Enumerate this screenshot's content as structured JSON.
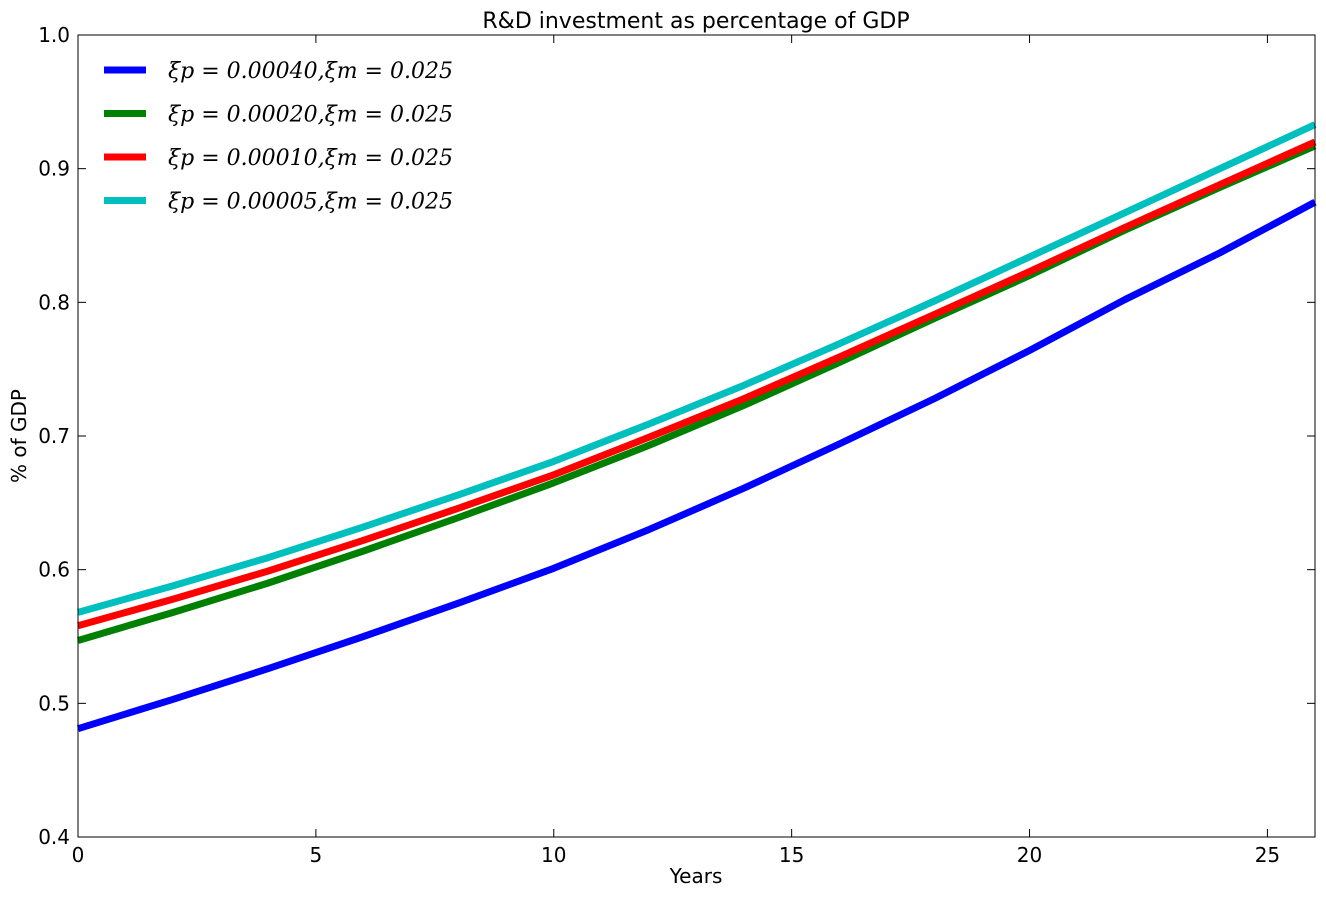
{
  "chart_data": {
    "type": "line",
    "title": "R&D investment as percentage of  GDP",
    "xlabel": "Years",
    "ylabel": "% of GDP",
    "xlim": [
      0,
      26
    ],
    "ylim": [
      0.4,
      1.0
    ],
    "xticks": [
      0,
      5,
      10,
      15,
      20,
      25
    ],
    "yticks": [
      0.4,
      0.5,
      0.6,
      0.7,
      0.8,
      0.9,
      1.0
    ],
    "xtick_labels": [
      "0",
      "5",
      "10",
      "15",
      "20",
      "25"
    ],
    "ytick_labels": [
      "0.4",
      "0.5",
      "0.6",
      "0.7",
      "0.8",
      "0.9",
      "1.0"
    ],
    "grid": false,
    "legend_position": "top-left",
    "series": [
      {
        "name": "ξp = 0.00040,ξm = 0.025",
        "color": "#0000ff",
        "x": [
          0,
          2,
          4,
          6,
          8,
          10,
          12,
          14,
          16,
          18,
          20,
          22,
          24,
          26
        ],
        "y": [
          0.481,
          0.503,
          0.526,
          0.55,
          0.575,
          0.601,
          0.63,
          0.661,
          0.694,
          0.728,
          0.764,
          0.802,
          0.837,
          0.875
        ]
      },
      {
        "name": "ξp = 0.00020,ξm = 0.025",
        "color": "#008000",
        "x": [
          0,
          2,
          4,
          6,
          8,
          10,
          12,
          14,
          16,
          18,
          20,
          22,
          24,
          26
        ],
        "y": [
          0.547,
          0.568,
          0.59,
          0.614,
          0.639,
          0.665,
          0.693,
          0.723,
          0.755,
          0.788,
          0.82,
          0.854,
          0.886,
          0.917
        ]
      },
      {
        "name": "ξp = 0.00010,ξm = 0.025",
        "color": "#ff0000",
        "x": [
          0,
          2,
          4,
          6,
          8,
          10,
          12,
          14,
          16,
          18,
          20,
          22,
          24,
          26
        ],
        "y": [
          0.558,
          0.578,
          0.599,
          0.622,
          0.646,
          0.671,
          0.699,
          0.728,
          0.759,
          0.791,
          0.823,
          0.856,
          0.888,
          0.92
        ]
      },
      {
        "name": "ξp = 0.00005,ξm = 0.025",
        "color": "#00bfbf",
        "x": [
          0,
          2,
          4,
          6,
          8,
          10,
          12,
          14,
          16,
          18,
          20,
          22,
          24,
          26
        ],
        "y": [
          0.568,
          0.588,
          0.609,
          0.632,
          0.656,
          0.681,
          0.709,
          0.738,
          0.769,
          0.801,
          0.834,
          0.867,
          0.9,
          0.933
        ]
      }
    ]
  }
}
